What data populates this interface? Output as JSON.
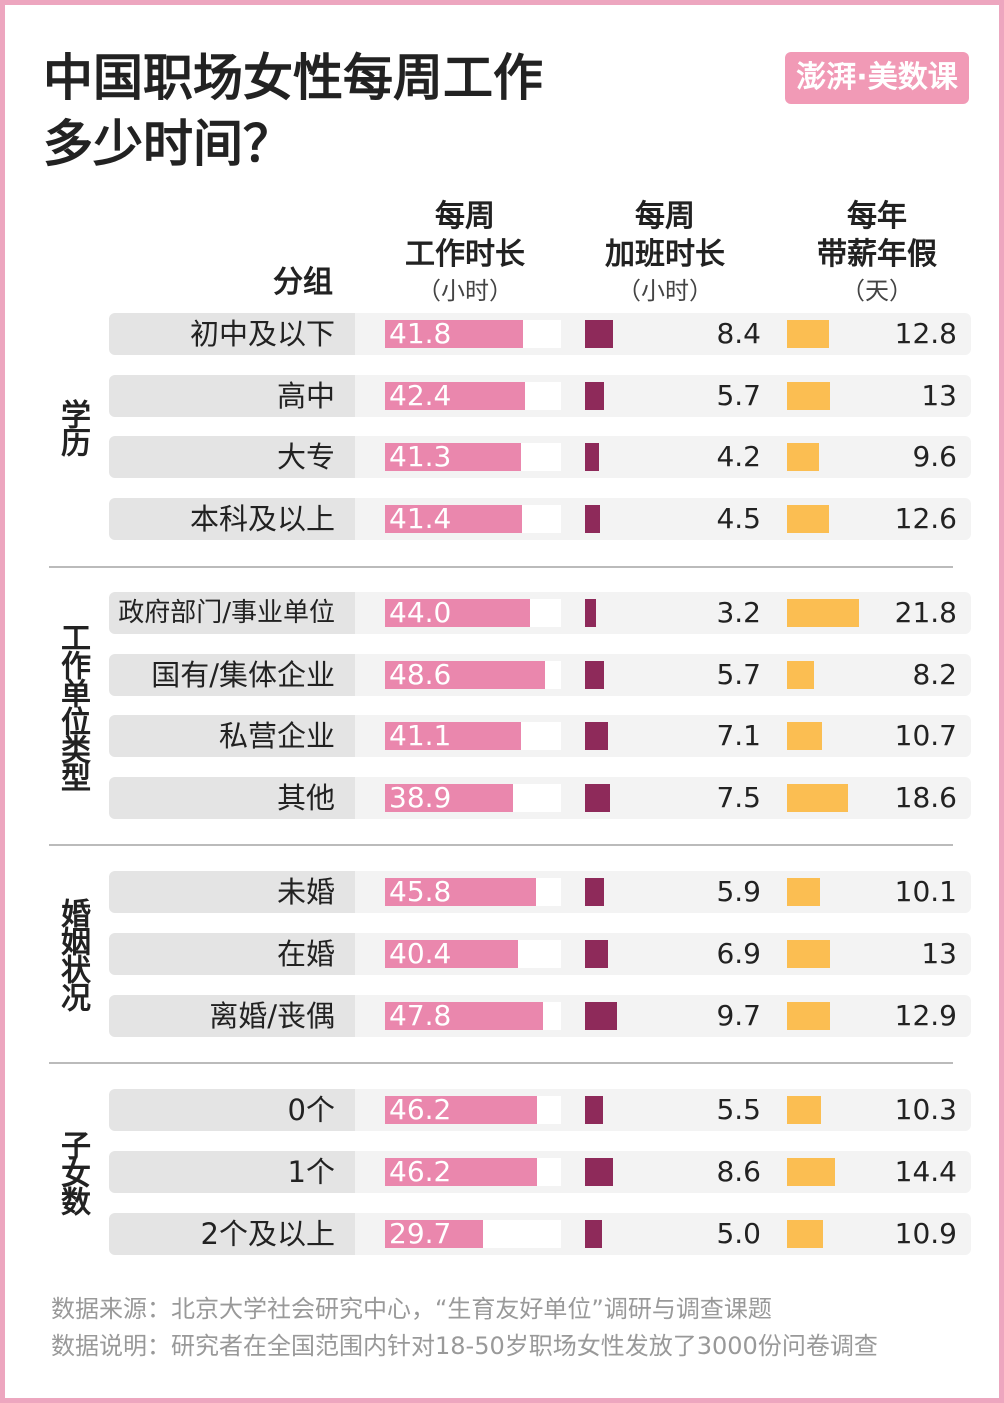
{
  "chart_data": {
    "type": "table-bar",
    "title": "中国职场女性每周工作\n多少时间？",
    "logo": "澎湃·美数课",
    "group_header": "分组",
    "groups": [
      {
        "name": "学历",
        "categories": [
          "初中及以下",
          "高中",
          "大专",
          "本科及以上"
        ]
      },
      {
        "name": "工作单位类型",
        "categories": [
          "政府部门/事业单位",
          "国有/集体企业",
          "私营企业",
          "其他"
        ]
      },
      {
        "name": "婚姻状况",
        "categories": [
          "未婚",
          "在婚",
          "离婚/丧偶"
        ]
      },
      {
        "name": "子女数",
        "categories": [
          "0个",
          "1个",
          "2个及以上"
        ]
      }
    ],
    "series": [
      {
        "name": "每周\n工作时长",
        "unit": "（小时）",
        "color": "#ea87ad",
        "values": [
          41.8,
          42.4,
          41.3,
          41.4,
          44.0,
          48.6,
          41.1,
          38.9,
          45.8,
          40.4,
          47.8,
          46.2,
          46.2,
          29.7
        ],
        "value_labels": [
          "41.8",
          "42.4",
          "41.3",
          "41.4",
          "44.0",
          "48.6",
          "41.1",
          "38.9",
          "45.8",
          "40.4",
          "47.8",
          "46.2",
          "46.2",
          "29.7"
        ]
      },
      {
        "name": "每周\n加班时长",
        "unit": "（小时）",
        "color": "#8e2a5a",
        "values": [
          8.4,
          5.7,
          4.2,
          4.5,
          3.2,
          5.7,
          7.1,
          7.5,
          5.9,
          6.9,
          9.7,
          5.5,
          8.6,
          5.0
        ],
        "value_labels": [
          "8.4",
          "5.7",
          "4.2",
          "4.5",
          "3.2",
          "5.7",
          "7.1",
          "7.5",
          "5.9",
          "6.9",
          "9.7",
          "5.5",
          "8.6",
          "5.0"
        ]
      },
      {
        "name": "每年\n带薪年假",
        "unit": "（天）",
        "color": "#fbbe52",
        "values": [
          12.8,
          13,
          9.6,
          12.6,
          21.8,
          8.2,
          10.7,
          18.6,
          10.1,
          13,
          12.9,
          10.3,
          14.4,
          10.9
        ]
      }
    ],
    "source": "数据来源：北京大学社会研究中心，“生育友好单位”调研与调查课题",
    "note": "数据说明：研究者在全国范围内针对18-50岁职场女性发放了3000份问卷调查"
  }
}
